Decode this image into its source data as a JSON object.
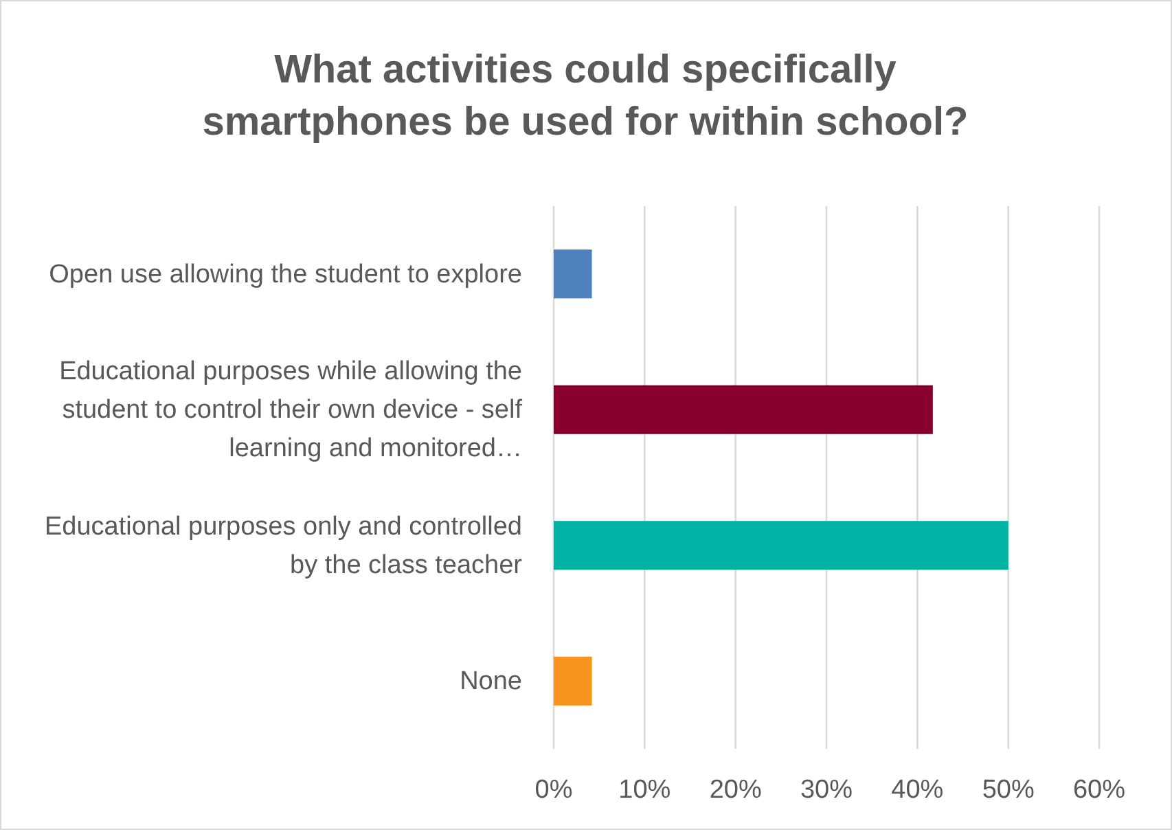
{
  "chart_data": {
    "type": "bar",
    "orientation": "horizontal",
    "title": "What activities could specifically smartphones be used for within school?",
    "categories": [
      "Open use allowing the student to explore",
      "Educational purposes while allowing the student to control their own device - self learning and monitored…",
      "Educational purposes only and controlled by the class teacher",
      "None"
    ],
    "values": [
      4.2,
      41.7,
      50,
      4.2
    ],
    "colors": [
      "#4f81bd",
      "#870030",
      "#00b2a4",
      "#f7941d"
    ],
    "xlim": [
      0,
      60
    ],
    "xticks": [
      {
        "value": 0,
        "label": "0%"
      },
      {
        "value": 10,
        "label": "10%"
      },
      {
        "value": 20,
        "label": "20%"
      },
      {
        "value": 30,
        "label": "30%"
      },
      {
        "value": 40,
        "label": "40%"
      },
      {
        "value": 50,
        "label": "50%"
      },
      {
        "value": 60,
        "label": "60%"
      }
    ],
    "grid": "x"
  }
}
